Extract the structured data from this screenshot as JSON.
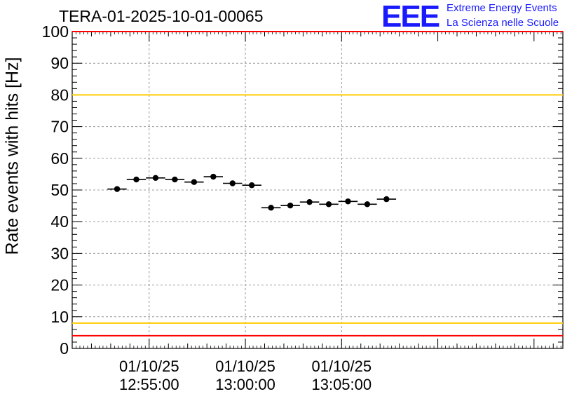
{
  "header": {
    "run_title": "TERA-01-2025-10-01-00065",
    "logo_mark": "EEE",
    "logo_line1": "Extreme Energy Events",
    "logo_line2": "La Scienza nelle Scuole"
  },
  "colors": {
    "limit_red": "#ff0000",
    "limit_yellow": "#ffcc00",
    "logo_blue": "#1a1aff",
    "marker": "#000000"
  },
  "chart_data": {
    "type": "scatter",
    "title": "TERA-01-2025-10-01-00065",
    "ylabel": "Rate events with hits [Hz]",
    "xlabel": "",
    "ylim": [
      0,
      100
    ],
    "y_ticks": [
      0,
      10,
      20,
      30,
      40,
      50,
      60,
      70,
      80,
      90,
      100
    ],
    "xlim_seconds": [
      -240,
      1290
    ],
    "x_ticks": [
      {
        "t": 0,
        "date": "01/10/25",
        "time": "12:55:00"
      },
      {
        "t": 300,
        "date": "01/10/25",
        "time": "13:00:00"
      },
      {
        "t": 600,
        "date": "01/10/25",
        "time": "13:05:00"
      }
    ],
    "x_unit": "seconds relative to 12:55:00",
    "bin_width_seconds": 60,
    "points": [
      {
        "t": -100,
        "y": 50.3
      },
      {
        "t": -40,
        "y": 53.3
      },
      {
        "t": 20,
        "y": 53.8
      },
      {
        "t": 80,
        "y": 53.3
      },
      {
        "t": 140,
        "y": 52.5
      },
      {
        "t": 200,
        "y": 54.2
      },
      {
        "t": 260,
        "y": 52.1
      },
      {
        "t": 320,
        "y": 51.5
      },
      {
        "t": 380,
        "y": 44.4
      },
      {
        "t": 440,
        "y": 45.1
      },
      {
        "t": 500,
        "y": 46.2
      },
      {
        "t": 560,
        "y": 45.5
      },
      {
        "t": 620,
        "y": 46.4
      },
      {
        "t": 680,
        "y": 45.5
      },
      {
        "t": 740,
        "y": 47.1
      }
    ],
    "reference_lines": [
      {
        "y": 100,
        "color": "red"
      },
      {
        "y": 80,
        "color": "yellow"
      },
      {
        "y": 8,
        "color": "yellow"
      },
      {
        "y": 4,
        "color": "red"
      }
    ],
    "grid": true
  }
}
